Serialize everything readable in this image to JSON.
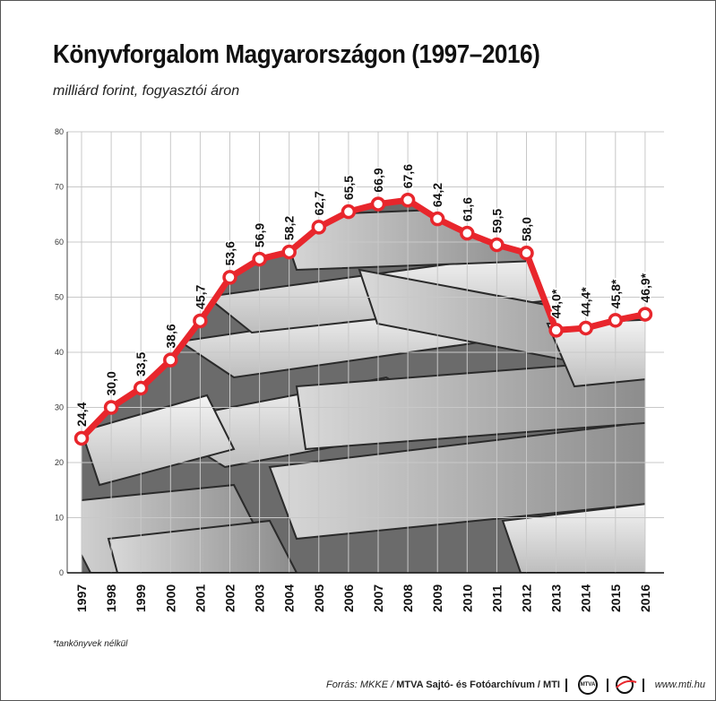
{
  "chart_data": {
    "type": "line",
    "title": "Könyvforgalom Magyarországon (1997–2016)",
    "subtitle": "milliárd forint, fogyasztói áron",
    "ylim": [
      0,
      80
    ],
    "yticks": [
      "0",
      "10",
      "20",
      "30",
      "40",
      "50",
      "60",
      "70",
      "80"
    ],
    "grid": true,
    "categories": [
      "1997",
      "1998",
      "1999",
      "2000",
      "2001",
      "2002",
      "2003",
      "2004",
      "2005",
      "2006",
      "2007",
      "2008",
      "2009",
      "2010",
      "2011",
      "2012",
      "2013",
      "2014",
      "2015",
      "2016"
    ],
    "values": [
      24.4,
      30.0,
      33.5,
      38.6,
      45.7,
      53.6,
      56.9,
      58.2,
      62.7,
      65.5,
      66.9,
      67.6,
      64.2,
      61.6,
      59.5,
      58.0,
      44.0,
      44.4,
      45.8,
      46.9
    ],
    "labels": [
      "24,4",
      "30,0",
      "33,5",
      "38,6",
      "45,7",
      "53,6",
      "56,9",
      "58,2",
      "62,7",
      "65,5",
      "66,9",
      "67,6",
      "64,2",
      "61,6",
      "59,5",
      "58,0",
      "44,0*",
      "44,4*",
      "45,8*",
      "46,9*"
    ],
    "line_color": "#e8262c"
  },
  "footnote": "*tankönyvek nélkül",
  "footer": {
    "source_prefix": "Forrás: MKKE / ",
    "source_bold": "MTVA Sajtó- és Fotóarchívum / MTI",
    "logo_text": "MTVA",
    "website": "www.mti.hu"
  }
}
